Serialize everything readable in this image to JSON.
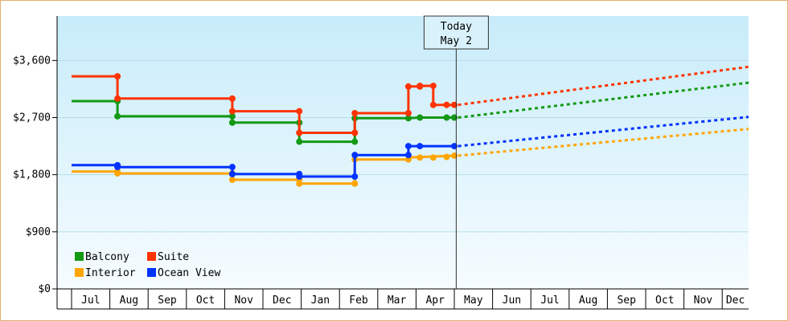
{
  "chart_data": {
    "type": "line",
    "title": "",
    "xlabel": "",
    "ylabel": "",
    "ylim": [
      0,
      4300
    ],
    "y_ticks": [
      {
        "value": 0,
        "label": "$0"
      },
      {
        "value": 900,
        "label": "$900"
      },
      {
        "value": 1800,
        "label": "$1,800"
      },
      {
        "value": 2700,
        "label": "$2,700"
      },
      {
        "value": 3600,
        "label": "$3,600"
      }
    ],
    "x_months": [
      "Jul",
      "Aug",
      "Sep",
      "Oct",
      "Nov",
      "Dec",
      "Jan",
      "Feb",
      "Mar",
      "Apr",
      "May",
      "Jun",
      "Jul",
      "Aug",
      "Sep",
      "Oct",
      "Nov",
      "Dec"
    ],
    "today": {
      "line1": "Today",
      "line2": "May 2",
      "month_index": 10.05
    },
    "legend": {
      "placement": "bottom-left"
    },
    "series": [
      {
        "name": "Balcony",
        "color": "#139913",
        "points": [
          [
            0.0,
            2960
          ],
          [
            1.2,
            2960
          ],
          [
            1.2,
            2720
          ],
          [
            4.2,
            2720
          ],
          [
            4.2,
            2620
          ],
          [
            5.95,
            2620
          ],
          [
            5.95,
            2320
          ],
          [
            7.4,
            2320
          ],
          [
            7.4,
            2690
          ],
          [
            8.8,
            2690
          ],
          [
            9.1,
            2700
          ],
          [
            10.0,
            2700
          ]
        ],
        "markers": [
          [
            1.2,
            2960
          ],
          [
            1.2,
            2720
          ],
          [
            4.2,
            2720
          ],
          [
            4.2,
            2620
          ],
          [
            5.95,
            2620
          ],
          [
            5.95,
            2320
          ],
          [
            7.4,
            2320
          ],
          [
            7.4,
            2690
          ],
          [
            8.8,
            2690
          ],
          [
            9.1,
            2700
          ],
          [
            9.8,
            2700
          ],
          [
            10.0,
            2700
          ]
        ],
        "forecast": [
          [
            10.1,
            2700
          ],
          [
            18.0,
            3250
          ]
        ]
      },
      {
        "name": "Suite",
        "color": "#ff3300",
        "points": [
          [
            0.0,
            3350
          ],
          [
            1.2,
            3350
          ],
          [
            1.2,
            3000
          ],
          [
            4.2,
            3000
          ],
          [
            4.2,
            2800
          ],
          [
            5.95,
            2800
          ],
          [
            5.95,
            2460
          ],
          [
            7.4,
            2460
          ],
          [
            7.4,
            2770
          ],
          [
            8.8,
            2770
          ],
          [
            8.8,
            3190
          ],
          [
            9.1,
            3190
          ],
          [
            9.1,
            3200
          ],
          [
            9.45,
            3200
          ],
          [
            9.45,
            2900
          ],
          [
            10.0,
            2900
          ]
        ],
        "markers": [
          [
            1.2,
            3350
          ],
          [
            1.2,
            3000
          ],
          [
            4.2,
            3000
          ],
          [
            4.2,
            2800
          ],
          [
            5.95,
            2800
          ],
          [
            5.95,
            2460
          ],
          [
            7.4,
            2460
          ],
          [
            7.4,
            2770
          ],
          [
            8.8,
            2770
          ],
          [
            8.8,
            3190
          ],
          [
            9.1,
            3190
          ],
          [
            9.1,
            3200
          ],
          [
            9.45,
            3200
          ],
          [
            9.45,
            2900
          ],
          [
            9.8,
            2900
          ],
          [
            10.0,
            2900
          ]
        ],
        "forecast": [
          [
            10.1,
            2900
          ],
          [
            18.0,
            3500
          ]
        ]
      },
      {
        "name": "Interior",
        "color": "#ffa500",
        "points": [
          [
            0.0,
            1850
          ],
          [
            1.2,
            1850
          ],
          [
            1.2,
            1820
          ],
          [
            4.2,
            1820
          ],
          [
            4.2,
            1720
          ],
          [
            5.95,
            1720
          ],
          [
            5.95,
            1660
          ],
          [
            7.4,
            1660
          ],
          [
            7.4,
            2040
          ],
          [
            8.8,
            2040
          ],
          [
            8.8,
            2070
          ],
          [
            10.0,
            2100
          ]
        ],
        "markers": [
          [
            1.2,
            1850
          ],
          [
            1.2,
            1820
          ],
          [
            4.2,
            1820
          ],
          [
            4.2,
            1720
          ],
          [
            5.95,
            1720
          ],
          [
            5.95,
            1660
          ],
          [
            7.4,
            1660
          ],
          [
            7.4,
            2040
          ],
          [
            8.8,
            2040
          ],
          [
            9.1,
            2070
          ],
          [
            9.45,
            2070
          ],
          [
            9.8,
            2080
          ],
          [
            10.0,
            2100
          ]
        ],
        "forecast": [
          [
            10.1,
            2100
          ],
          [
            18.0,
            2520
          ]
        ]
      },
      {
        "name": "Ocean View",
        "color": "#0033ff",
        "points": [
          [
            0.0,
            1950
          ],
          [
            1.2,
            1950
          ],
          [
            1.2,
            1920
          ],
          [
            4.2,
            1920
          ],
          [
            4.2,
            1810
          ],
          [
            5.95,
            1810
          ],
          [
            5.95,
            1770
          ],
          [
            7.4,
            1770
          ],
          [
            7.4,
            2110
          ],
          [
            8.8,
            2110
          ],
          [
            8.8,
            2250
          ],
          [
            10.0,
            2250
          ]
        ],
        "markers": [
          [
            1.2,
            1950
          ],
          [
            1.2,
            1920
          ],
          [
            4.2,
            1920
          ],
          [
            4.2,
            1810
          ],
          [
            5.95,
            1810
          ],
          [
            5.95,
            1770
          ],
          [
            7.4,
            1770
          ],
          [
            7.4,
            2110
          ],
          [
            8.8,
            2110
          ],
          [
            8.8,
            2250
          ],
          [
            9.1,
            2250
          ],
          [
            10.0,
            2250
          ]
        ],
        "forecast": [
          [
            10.1,
            2250
          ],
          [
            18.0,
            2710
          ]
        ]
      }
    ]
  }
}
